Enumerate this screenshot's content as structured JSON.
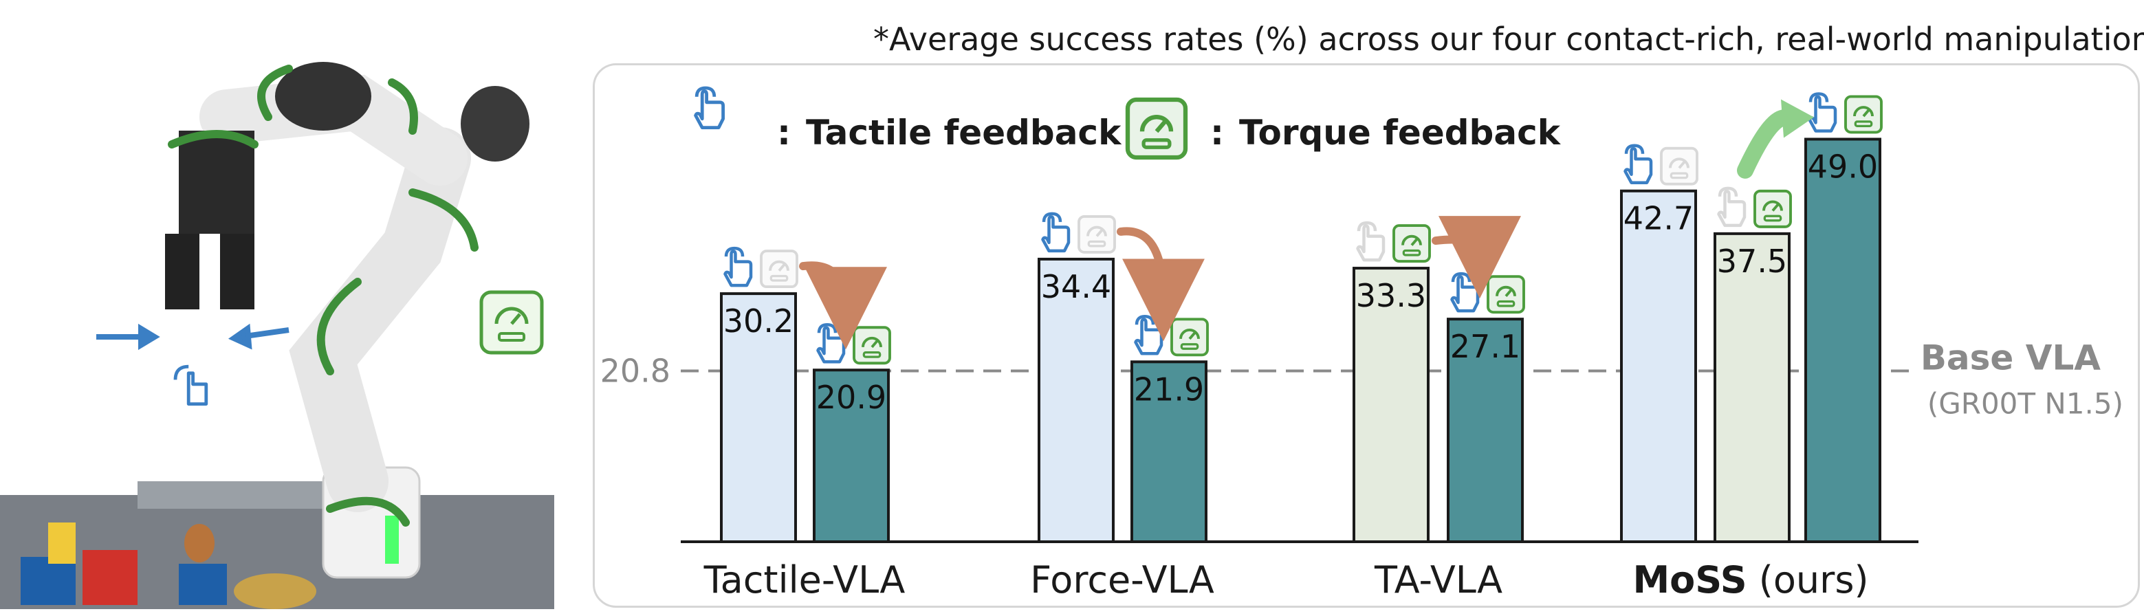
{
  "note": "*Average success rates (%) across our four contact-rich, real-world manipulation tasks",
  "legend": {
    "tactile_sep": ":",
    "tactile_label": "Tactile feedback",
    "torque_sep": ":",
    "torque_label": "Torque feedback"
  },
  "photo": {
    "description_icons": [
      "robot-arm",
      "tactile-icon",
      "torque-icon",
      "arrows"
    ]
  },
  "colors": {
    "tactile_bar": "#dde9f6",
    "force_bar": "#dde9f6",
    "ta_bar": "#e4ebde",
    "moss_bar": "#e4ebde",
    "with_feedback_bar": "#4e9197",
    "tactile_icon": "#3b7fc4",
    "torque_icon": "#4d9d3e",
    "down_arrow": "#c98463",
    "up_arrow": "#8fd08a",
    "baseline": "#8a8a8a"
  },
  "chart_data": {
    "type": "bar",
    "categories": [
      "Tactile-VLA",
      "Force-VLA",
      "TA-VLA",
      "MoSS (ours)"
    ],
    "category_label_main": [
      "Tactile-VLA",
      "Force-VLA",
      "TA-VLA",
      "MoSS"
    ],
    "category_label_suffix": [
      "",
      "",
      "",
      " (ours)"
    ],
    "bars": [
      {
        "category": "Tactile-VLA",
        "value": 30.2,
        "label": "30.2",
        "tactile": true,
        "torque": false
      },
      {
        "category": "Tactile-VLA",
        "value": 20.9,
        "label": "20.9",
        "tactile": true,
        "torque": true
      },
      {
        "category": "Force-VLA",
        "value": 34.4,
        "label": "34.4",
        "tactile": true,
        "torque": false
      },
      {
        "category": "Force-VLA",
        "value": 21.9,
        "label": "21.9",
        "tactile": true,
        "torque": true
      },
      {
        "category": "TA-VLA",
        "value": 33.3,
        "label": "33.3",
        "tactile": false,
        "torque": true
      },
      {
        "category": "TA-VLA",
        "value": 27.1,
        "label": "27.1",
        "tactile": true,
        "torque": true
      },
      {
        "category": "MoSS (ours)",
        "value": 42.7,
        "label": "42.7",
        "tactile": true,
        "torque": false
      },
      {
        "category": "MoSS (ours)",
        "value": 37.5,
        "label": "37.5",
        "tactile": false,
        "torque": true
      },
      {
        "category": "MoSS (ours)",
        "value": 49.0,
        "label": "49.0",
        "tactile": true,
        "torque": true
      }
    ],
    "baseline": {
      "value": 20.8,
      "value_label": "20.8",
      "label": "Base VLA",
      "sublabel": "(GR00T N1.5)"
    },
    "ylim": [
      0,
      50
    ],
    "grid": false
  }
}
